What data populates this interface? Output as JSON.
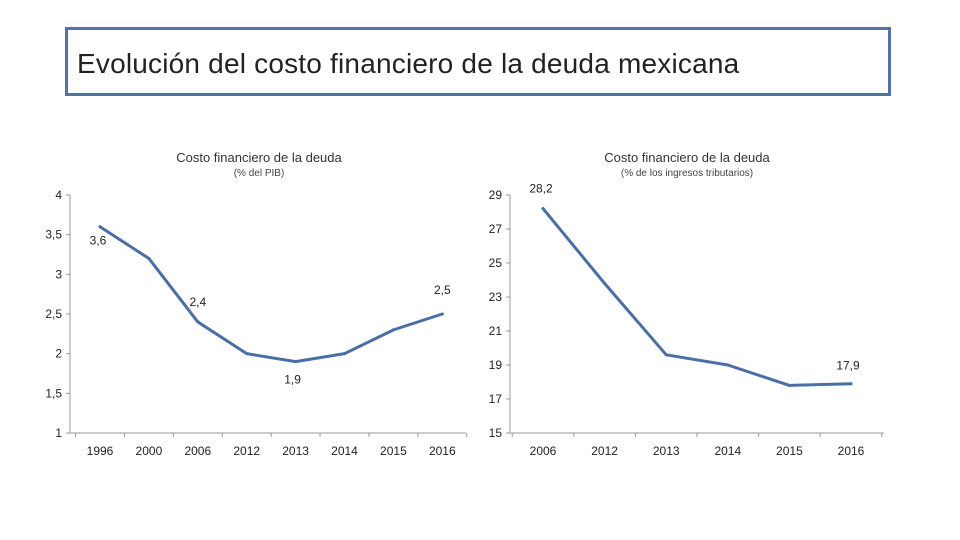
{
  "slide": {
    "title": "Evolución del costo financiero de la deuda mexicana"
  },
  "colors": {
    "line": "#4a6fa5",
    "frame": "#5273a8",
    "axis": "#9a9a9a"
  },
  "chart_data": [
    {
      "type": "line",
      "title": "Costo financiero de la deuda",
      "subtitle": "(% del PIB)",
      "categories": [
        "1996",
        "2000",
        "2006",
        "2012",
        "2013",
        "2014",
        "2015",
        "2016"
      ],
      "values": [
        3.6,
        3.2,
        2.4,
        2.0,
        1.9,
        2.0,
        2.3,
        2.5
      ],
      "ylim": [
        1,
        4
      ],
      "yticks": [
        "1",
        "1,5",
        "2",
        "2,5",
        "3",
        "3,5",
        "4"
      ],
      "data_labels": [
        {
          "index": 0,
          "text": "3,6"
        },
        {
          "index": 2,
          "text": "2,4"
        },
        {
          "index": 4,
          "text": "1,9"
        },
        {
          "index": 7,
          "text": "2,5"
        }
      ]
    },
    {
      "type": "line",
      "title": "Costo financiero de la deuda",
      "subtitle": "(% de los ingresos tributarios)",
      "categories": [
        "2006",
        "2012",
        "2013",
        "2014",
        "2015",
        "2016"
      ],
      "values": [
        28.2,
        23.8,
        19.6,
        19.0,
        17.8,
        17.9
      ],
      "ylim": [
        15,
        29
      ],
      "yticks": [
        "15",
        "17",
        "19",
        "21",
        "23",
        "25",
        "27",
        "29"
      ],
      "data_labels": [
        {
          "index": 0,
          "text": "28,2"
        },
        {
          "index": 5,
          "text": "17,9"
        }
      ]
    }
  ]
}
